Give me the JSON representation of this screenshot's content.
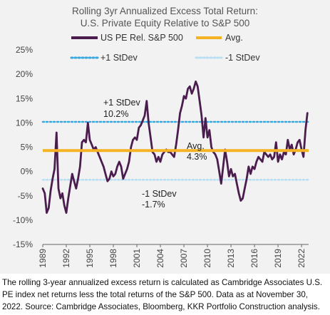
{
  "chart_data": {
    "type": "line",
    "title": "Rolling 3yr Annualized Excess Total Return:",
    "subtitle": "U.S. Private Equity Relative to S&P 500",
    "xlabel": "",
    "ylabel": "",
    "ylim": [
      -15,
      25
    ],
    "yticks": [
      "25%",
      "20%",
      "15%",
      "10%",
      "5%",
      "0%",
      "-5%",
      "-10%",
      "-15%"
    ],
    "xlim": [
      1989,
      2022.9
    ],
    "xticks": [
      "1989",
      "1992",
      "1995",
      "1998",
      "2001",
      "2004",
      "2007",
      "2010",
      "2013",
      "2016",
      "2019",
      "2022"
    ],
    "legend": {
      "placement": "top",
      "entries": [
        "US PE Rel. S&P 500",
        "Avg.",
        "+1 StDev",
        "-1 StDev"
      ]
    },
    "series": [
      {
        "name": "US PE Rel. S&P 500",
        "color": "#4b1d4f",
        "points": [
          [
            1989.0,
            -3.5
          ],
          [
            1989.25,
            -4.5
          ],
          [
            1989.5,
            -8.5
          ],
          [
            1989.75,
            -7.5
          ],
          [
            1990.0,
            -4.0
          ],
          [
            1990.25,
            -1.5
          ],
          [
            1990.5,
            0.5
          ],
          [
            1990.75,
            8.0
          ],
          [
            1991.0,
            -3.5
          ],
          [
            1991.25,
            -5.5
          ],
          [
            1991.5,
            -4.5
          ],
          [
            1991.75,
            -7.0
          ],
          [
            1992.0,
            -8.5
          ],
          [
            1992.25,
            -5.5
          ],
          [
            1992.5,
            -3.0
          ],
          [
            1992.75,
            -0.5
          ],
          [
            1993.0,
            -2.0
          ],
          [
            1993.25,
            -3.5
          ],
          [
            1993.5,
            -1.5
          ],
          [
            1993.75,
            1.0
          ],
          [
            1994.0,
            6.0
          ],
          [
            1994.25,
            6.5
          ],
          [
            1994.5,
            6.0
          ],
          [
            1994.75,
            10.0
          ],
          [
            1995.0,
            6.5
          ],
          [
            1995.25,
            5.5
          ],
          [
            1995.5,
            4.5
          ],
          [
            1995.75,
            5.0
          ],
          [
            1996.0,
            4.0
          ],
          [
            1996.25,
            3.0
          ],
          [
            1996.5,
            2.0
          ],
          [
            1996.75,
            1.0
          ],
          [
            1997.0,
            -0.5
          ],
          [
            1997.25,
            -2.0
          ],
          [
            1997.5,
            -1.5
          ],
          [
            1997.75,
            0.0
          ],
          [
            1998.0,
            -1.0
          ],
          [
            1998.25,
            -0.5
          ],
          [
            1998.5,
            1.0
          ],
          [
            1998.75,
            2.0
          ],
          [
            1999.0,
            1.0
          ],
          [
            1999.25,
            -1.5
          ],
          [
            1999.5,
            -0.5
          ],
          [
            1999.75,
            0.5
          ],
          [
            2000.0,
            2.0
          ],
          [
            2000.25,
            5.0
          ],
          [
            2000.5,
            6.5
          ],
          [
            2000.75,
            7.0
          ],
          [
            2001.0,
            6.5
          ],
          [
            2001.25,
            9.0
          ],
          [
            2001.5,
            9.5
          ],
          [
            2001.75,
            10.5
          ],
          [
            2002.0,
            11.5
          ],
          [
            2002.25,
            14.5
          ],
          [
            2002.5,
            10.0
          ],
          [
            2002.75,
            7.0
          ],
          [
            2003.0,
            4.0
          ],
          [
            2003.25,
            3.5
          ],
          [
            2003.5,
            2.0
          ],
          [
            2003.75,
            3.0
          ],
          [
            2004.0,
            2.0
          ],
          [
            2004.25,
            3.5
          ],
          [
            2004.5,
            4.0
          ],
          [
            2004.75,
            4.5
          ],
          [
            2005.0,
            4.0
          ],
          [
            2005.25,
            4.0
          ],
          [
            2005.5,
            3.5
          ],
          [
            2005.75,
            3.0
          ],
          [
            2006.0,
            5.5
          ],
          [
            2006.25,
            8.5
          ],
          [
            2006.5,
            12.0
          ],
          [
            2006.75,
            13.5
          ],
          [
            2007.0,
            15.5
          ],
          [
            2007.25,
            15.0
          ],
          [
            2007.5,
            17.0
          ],
          [
            2007.75,
            17.5
          ],
          [
            2008.0,
            16.0
          ],
          [
            2008.25,
            17.0
          ],
          [
            2008.5,
            18.5
          ],
          [
            2008.75,
            17.5
          ],
          [
            2009.0,
            14.5
          ],
          [
            2009.25,
            11.5
          ],
          [
            2009.5,
            7.0
          ],
          [
            2009.75,
            11.0
          ],
          [
            2010.0,
            7.0
          ],
          [
            2010.25,
            8.5
          ],
          [
            2010.5,
            5.0
          ],
          [
            2010.75,
            4.0
          ],
          [
            2011.0,
            3.5
          ],
          [
            2011.25,
            2.5
          ],
          [
            2011.5,
            0.0
          ],
          [
            2011.75,
            -2.5
          ],
          [
            2012.0,
            1.0
          ],
          [
            2012.25,
            4.5
          ],
          [
            2012.5,
            2.0
          ],
          [
            2012.75,
            -1.0
          ],
          [
            2013.0,
            0.5
          ],
          [
            2013.25,
            -1.0
          ],
          [
            2013.5,
            -0.5
          ],
          [
            2013.75,
            -2.5
          ],
          [
            2014.0,
            -4.5
          ],
          [
            2014.25,
            -6.0
          ],
          [
            2014.5,
            -5.5
          ],
          [
            2014.75,
            -3.5
          ],
          [
            2015.0,
            -1.5
          ],
          [
            2015.25,
            1.0
          ],
          [
            2015.5,
            -0.5
          ],
          [
            2015.75,
            1.0
          ],
          [
            2016.0,
            0.5
          ],
          [
            2016.25,
            2.0
          ],
          [
            2016.5,
            3.0
          ],
          [
            2016.75,
            2.5
          ],
          [
            2017.0,
            2.0
          ],
          [
            2017.25,
            4.0
          ],
          [
            2017.5,
            3.5
          ],
          [
            2017.75,
            3.0
          ],
          [
            2018.0,
            3.5
          ],
          [
            2018.25,
            2.5
          ],
          [
            2018.5,
            3.0
          ],
          [
            2018.75,
            6.0
          ],
          [
            2019.0,
            2.0
          ],
          [
            2019.25,
            3.5
          ],
          [
            2019.5,
            2.5
          ],
          [
            2019.75,
            4.0
          ],
          [
            2020.0,
            3.5
          ],
          [
            2020.25,
            6.5
          ],
          [
            2020.5,
            4.5
          ],
          [
            2020.75,
            5.5
          ],
          [
            2021.0,
            3.5
          ],
          [
            2021.25,
            4.5
          ],
          [
            2021.5,
            6.0
          ],
          [
            2021.75,
            6.5
          ],
          [
            2022.0,
            4.5
          ],
          [
            2022.25,
            3.0
          ],
          [
            2022.5,
            8.5
          ],
          [
            2022.75,
            12.0
          ]
        ]
      },
      {
        "name": "Avg.",
        "color": "#f5b324",
        "value": 4.3
      },
      {
        "name": "+1 StDev",
        "color": "#38a8e0",
        "value": 10.2
      },
      {
        "name": "-1 StDev",
        "color": "#b6dff5",
        "value": -1.7
      }
    ],
    "annotations": [
      {
        "line1": "+1 StDev",
        "line2": "10.2%"
      },
      {
        "line1": "Avg.",
        "line2": "4.3%"
      },
      {
        "line1": "-1 StDev",
        "line2": "-1.7%"
      }
    ]
  },
  "footnote": "The rolling 3-year annualized excess return is calculated as Cambridge Associates U.S. PE index net returns less the total returns of the S&P 500. Data as at November 30, 2022. Source: Cambridge Associates, Bloomberg, KKR Portfolio Construction analysis."
}
